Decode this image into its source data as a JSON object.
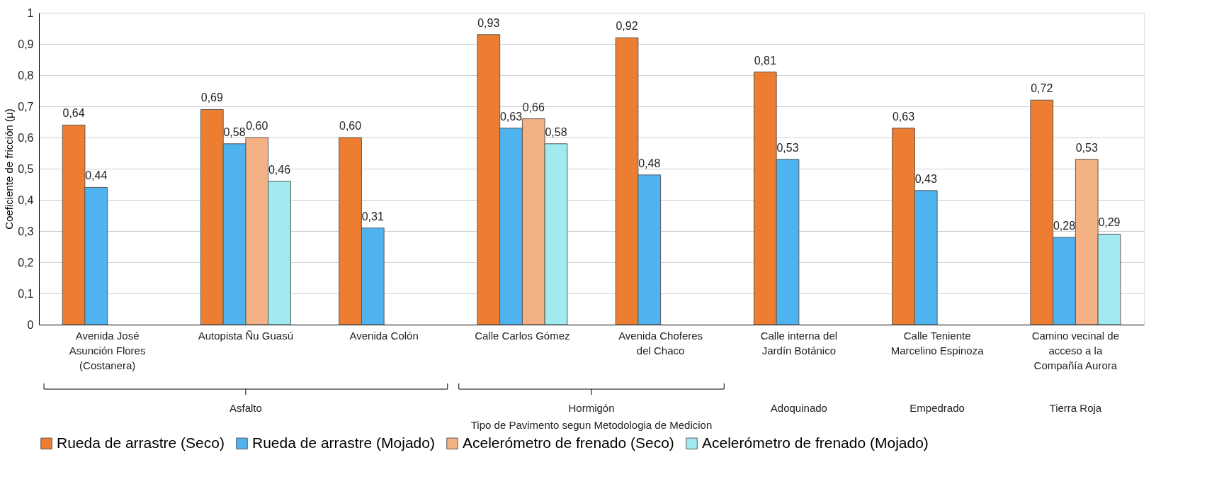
{
  "chart_data": {
    "type": "bar",
    "categories": [
      "Avenida José\nAsunción Flores\n(Costanera)",
      "Autopista Ñu Guasú",
      "Avenida Colón",
      "Calle Carlos Gómez",
      "Avenida Choferes\ndel Chaco",
      "Calle interna del\nJardín Botánico",
      "Calle Teniente\nMarcelino Espinoza",
      "Camino vecinal de\nacceso a la\nCompañía Aurora"
    ],
    "series": [
      {
        "name": "Rueda de arrastre (Seco)",
        "color": "#ed7d31",
        "values": [
          0.64,
          0.69,
          0.6,
          0.93,
          0.92,
          0.81,
          0.63,
          0.72
        ],
        "value_labels": [
          "0,64",
          "0,69",
          "0,60",
          "0,93",
          "0,92",
          "0,81",
          "0,63",
          "0,72"
        ]
      },
      {
        "name": "Rueda de arrastre (Mojado)",
        "color": "#4fb3f0",
        "values": [
          0.44,
          0.58,
          0.31,
          0.63,
          0.48,
          0.53,
          0.43,
          0.28
        ],
        "value_labels": [
          "0,44",
          "0,58",
          "0,31",
          "0,63",
          "0,48",
          "0,53",
          "0,43",
          "0,28"
        ]
      },
      {
        "name": "Acelerómetro de frenado (Seco)",
        "color": "#f4b183",
        "values": [
          null,
          0.6,
          null,
          0.66,
          null,
          null,
          null,
          0.53
        ],
        "value_labels": [
          null,
          "0,60",
          null,
          "0,66",
          null,
          null,
          null,
          "0,53"
        ]
      },
      {
        "name": "Acelerómetro de frenado (Mojado)",
        "color": "#a0eaf0",
        "values": [
          null,
          0.46,
          null,
          0.58,
          null,
          null,
          null,
          0.29
        ],
        "value_labels": [
          null,
          "0,46",
          null,
          "0,58",
          null,
          null,
          null,
          "0,29"
        ]
      }
    ],
    "ylabel": "Coeficiente de fricción (μ)",
    "annotations": [
      "Asfalto",
      "Hormigón",
      "Adoquinado",
      "Empedrado",
      "Tierra Roja",
      "Tipo de Pavimento segun Metodologia de Medicion"
    ],
    "ylim": [
      0,
      1
    ],
    "yticks": [
      0,
      {
        "value": 0.1,
        "label": "0,1"
      },
      {
        "value": 0.2,
        "label": "0,2"
      },
      {
        "value": 0.3,
        "label": "0,3"
      },
      {
        "value": 0.4,
        "label": "0,4"
      },
      {
        "value": 0.5,
        "label": "0,5"
      },
      {
        "value": 0.6,
        "label": "0,6"
      },
      {
        "value": 0.7,
        "label": "0,7"
      },
      {
        "value": 0.8,
        "label": "0,8"
      },
      {
        "value": 0.9,
        "label": "0,9"
      },
      1
    ],
    "grid": true,
    "legend": "bottom"
  }
}
